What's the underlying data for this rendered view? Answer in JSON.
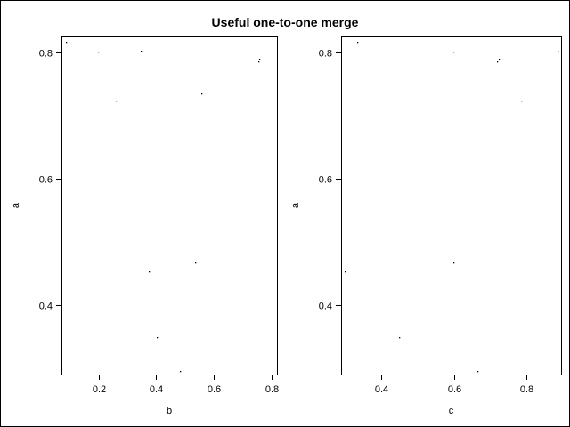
{
  "title": "Useful one-to-one merge",
  "chart_data": [
    {
      "type": "scatter",
      "xlabel": "b",
      "ylabel": "a",
      "xlim": [
        0.07,
        0.82
      ],
      "ylim": [
        0.29,
        0.825
      ],
      "xticks": [
        "0.2",
        "0.4",
        "0.6",
        "0.8"
      ],
      "yticks": [
        "0.4",
        "0.6",
        "0.8"
      ],
      "points": [
        [
          0.085,
          0.816
        ],
        [
          0.198,
          0.801
        ],
        [
          0.346,
          0.802
        ],
        [
          0.757,
          0.79
        ],
        [
          0.754,
          0.785
        ],
        [
          0.259,
          0.723
        ],
        [
          0.558,
          0.735
        ],
        [
          0.535,
          0.467
        ],
        [
          0.375,
          0.453
        ],
        [
          0.403,
          0.349
        ],
        [
          0.482,
          0.296
        ]
      ]
    },
    {
      "type": "scatter",
      "xlabel": "c",
      "ylabel": "a",
      "xlim": [
        0.29,
        0.895
      ],
      "ylim": [
        0.29,
        0.825
      ],
      "xticks": [
        "0.4",
        "0.6",
        "0.8"
      ],
      "yticks": [
        "0.4",
        "0.6",
        "0.8"
      ],
      "points": [
        [
          0.335,
          0.816
        ],
        [
          0.598,
          0.801
        ],
        [
          0.885,
          0.802
        ],
        [
          0.724,
          0.79
        ],
        [
          0.718,
          0.785
        ],
        [
          0.784,
          0.723
        ],
        [
          0.598,
          0.467
        ],
        [
          0.3,
          0.453
        ],
        [
          0.449,
          0.349
        ],
        [
          0.665,
          0.296
        ]
      ]
    }
  ]
}
